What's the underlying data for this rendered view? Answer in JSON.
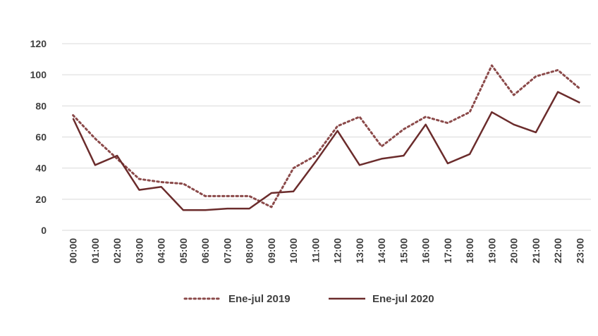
{
  "chart_data": {
    "type": "line",
    "title": "",
    "xlabel": "",
    "ylabel": "",
    "ylim": [
      0,
      120
    ],
    "yticks": [
      0,
      20,
      40,
      60,
      80,
      100,
      120
    ],
    "grid": "horizontal",
    "legend_position": "bottom",
    "categories": [
      "00:00",
      "01:00",
      "02:00",
      "03:00",
      "04:00",
      "05:00",
      "06:00",
      "07:00",
      "08:00",
      "09:00",
      "10:00",
      "11:00",
      "12:00",
      "13:00",
      "14:00",
      "15:00",
      "16:00",
      "17:00",
      "18:00",
      "19:00",
      "20:00",
      "21:00",
      "22:00",
      "23:00"
    ],
    "series": [
      {
        "name": "Ene-jul 2019",
        "style": "dotted",
        "color": "#8B4A4A",
        "values": [
          74,
          59,
          46,
          33,
          31,
          30,
          22,
          22,
          22,
          15,
          40,
          48,
          67,
          73,
          54,
          65,
          73,
          69,
          76,
          106,
          87,
          99,
          103,
          91
        ]
      },
      {
        "name": "Ene-jul 2020",
        "style": "solid",
        "color": "#6B2C2C",
        "values": [
          72,
          42,
          48,
          26,
          28,
          13,
          13,
          14,
          14,
          24,
          25,
          44,
          64,
          42,
          46,
          48,
          68,
          43,
          49,
          76,
          68,
          63,
          89,
          82
        ]
      }
    ]
  }
}
